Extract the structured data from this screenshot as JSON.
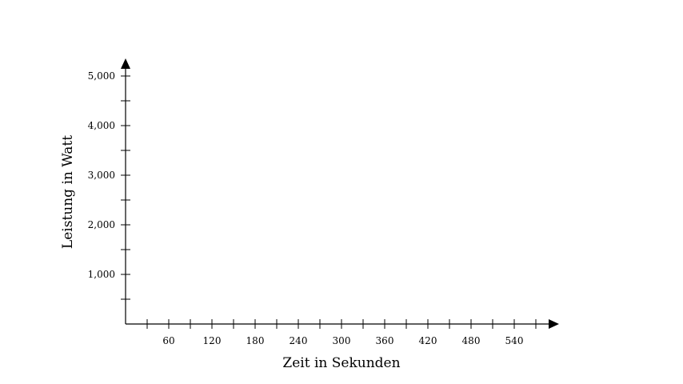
{
  "chart_data": {
    "type": "line",
    "title": "",
    "xlabel": "Zeit in Sekunden",
    "ylabel": "Leistung in Watt",
    "xlim": [
      0,
      570
    ],
    "ylim": [
      0,
      5000
    ],
    "x_major_ticks": [
      60,
      120,
      180,
      240,
      300,
      360,
      420,
      480,
      540
    ],
    "x_tick_labels": [
      "60",
      "120",
      "180",
      "240",
      "300",
      "360",
      "420",
      "480",
      "540"
    ],
    "x_minor_step": 30,
    "y_major_ticks": [
      1000,
      2000,
      3000,
      4000,
      5000
    ],
    "y_tick_labels": [
      "1,000",
      "2,000",
      "3,000",
      "4,000",
      "5,000"
    ],
    "y_minor_step": 500,
    "grid": false,
    "series": []
  }
}
